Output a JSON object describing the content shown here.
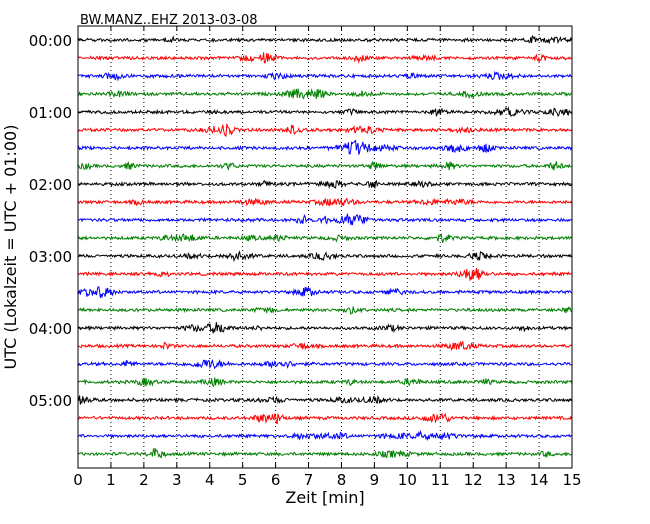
{
  "chart_data": {
    "type": "line",
    "title": "BW.MANZ..EHZ 2013-03-08",
    "xlabel": "Zeit  [min]",
    "ylabel": "UTC (Lokalzeit = UTC + 01:00)",
    "xlim": [
      0,
      15
    ],
    "x_ticks": [
      "0",
      "1",
      "2",
      "3",
      "4",
      "5",
      "6",
      "7",
      "8",
      "9",
      "10",
      "11",
      "12",
      "13",
      "14",
      "15"
    ],
    "y_tick_labels": [
      "00:00",
      "01:00",
      "02:00",
      "03:00",
      "04:00",
      "05:00"
    ],
    "row_interval_minutes": 15,
    "rows": 24,
    "row_colors": [
      "#000000",
      "#ff0000",
      "#0000ff",
      "#008000"
    ],
    "grid": "vertical dotted lines at each minute",
    "series": [
      {
        "start": "00:00",
        "color": "#000000"
      },
      {
        "start": "00:15",
        "color": "#ff0000"
      },
      {
        "start": "00:30",
        "color": "#0000ff"
      },
      {
        "start": "00:45",
        "color": "#008000"
      },
      {
        "start": "01:00",
        "color": "#000000"
      },
      {
        "start": "01:15",
        "color": "#ff0000"
      },
      {
        "start": "01:30",
        "color": "#0000ff"
      },
      {
        "start": "01:45",
        "color": "#008000"
      },
      {
        "start": "02:00",
        "color": "#000000"
      },
      {
        "start": "02:15",
        "color": "#ff0000"
      },
      {
        "start": "02:30",
        "color": "#0000ff"
      },
      {
        "start": "02:45",
        "color": "#008000"
      },
      {
        "start": "03:00",
        "color": "#000000"
      },
      {
        "start": "03:15",
        "color": "#ff0000"
      },
      {
        "start": "03:30",
        "color": "#0000ff"
      },
      {
        "start": "03:45",
        "color": "#008000"
      },
      {
        "start": "04:00",
        "color": "#000000"
      },
      {
        "start": "04:15",
        "color": "#ff0000"
      },
      {
        "start": "04:30",
        "color": "#0000ff"
      },
      {
        "start": "04:45",
        "color": "#008000"
      },
      {
        "start": "05:00",
        "color": "#000000"
      },
      {
        "start": "05:15",
        "color": "#ff0000"
      },
      {
        "start": "05:30",
        "color": "#0000ff"
      },
      {
        "start": "05:45",
        "color": "#008000"
      }
    ]
  }
}
